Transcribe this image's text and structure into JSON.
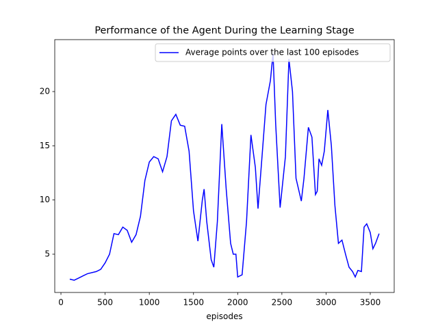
{
  "chart_data": {
    "type": "line",
    "title": "Performance of the Agent During the Learning Stage",
    "x_label": "episodes",
    "x": [
      100,
      150,
      200,
      250,
      300,
      400,
      450,
      500,
      550,
      600,
      650,
      700,
      750,
      800,
      850,
      900,
      950,
      1000,
      1050,
      1100,
      1150,
      1200,
      1250,
      1300,
      1350,
      1400,
      1450,
      1500,
      1550,
      1600,
      1620,
      1650,
      1700,
      1730,
      1770,
      1820,
      1870,
      1920,
      1950,
      1980,
      2000,
      2050,
      2100,
      2150,
      2200,
      2230,
      2280,
      2320,
      2370,
      2400,
      2430,
      2480,
      2540,
      2580,
      2620,
      2660,
      2720,
      2750,
      2800,
      2840,
      2880,
      2900,
      2920,
      2950,
      2980,
      3020,
      3060,
      3100,
      3140,
      3180,
      3220,
      3260,
      3300,
      3330,
      3360,
      3400,
      3430,
      3460,
      3500,
      3530,
      3560,
      3600
    ],
    "series": [
      {
        "name": "Average points over the last 100 episodes",
        "color": "#0000ff",
        "values": [
          2.7,
          2.6,
          2.8,
          3.0,
          3.2,
          3.4,
          3.6,
          4.2,
          5.0,
          6.9,
          6.8,
          7.5,
          7.2,
          6.1,
          6.8,
          8.5,
          11.8,
          13.5,
          14.0,
          13.8,
          12.6,
          14.0,
          17.3,
          17.9,
          16.9,
          16.8,
          14.5,
          9.0,
          6.2,
          10.0,
          11.0,
          8.0,
          4.5,
          3.8,
          8.0,
          17.0,
          11.0,
          6.0,
          5.0,
          5.0,
          2.9,
          3.1,
          8.0,
          16.0,
          13.0,
          9.2,
          14.5,
          18.8,
          21.0,
          23.5,
          17.0,
          9.3,
          14.0,
          23.0,
          20.0,
          12.0,
          9.9,
          12.0,
          16.7,
          15.8,
          10.5,
          10.8,
          13.8,
          13.2,
          14.5,
          18.3,
          15.0,
          9.5,
          6.0,
          6.3,
          5.0,
          3.8,
          3.4,
          2.9,
          3.5,
          3.4,
          7.5,
          7.8,
          7.0,
          5.5,
          6.0,
          6.9
        ]
      }
    ],
    "xlim": [
      -70,
      3771
    ],
    "ylim": [
      1.47,
      24.79
    ],
    "xticks": [
      0,
      500,
      1000,
      1500,
      2000,
      2500,
      3000,
      3500
    ],
    "yticks": [
      5,
      10,
      15,
      20
    ],
    "legend": "upper right",
    "grid": false
  }
}
